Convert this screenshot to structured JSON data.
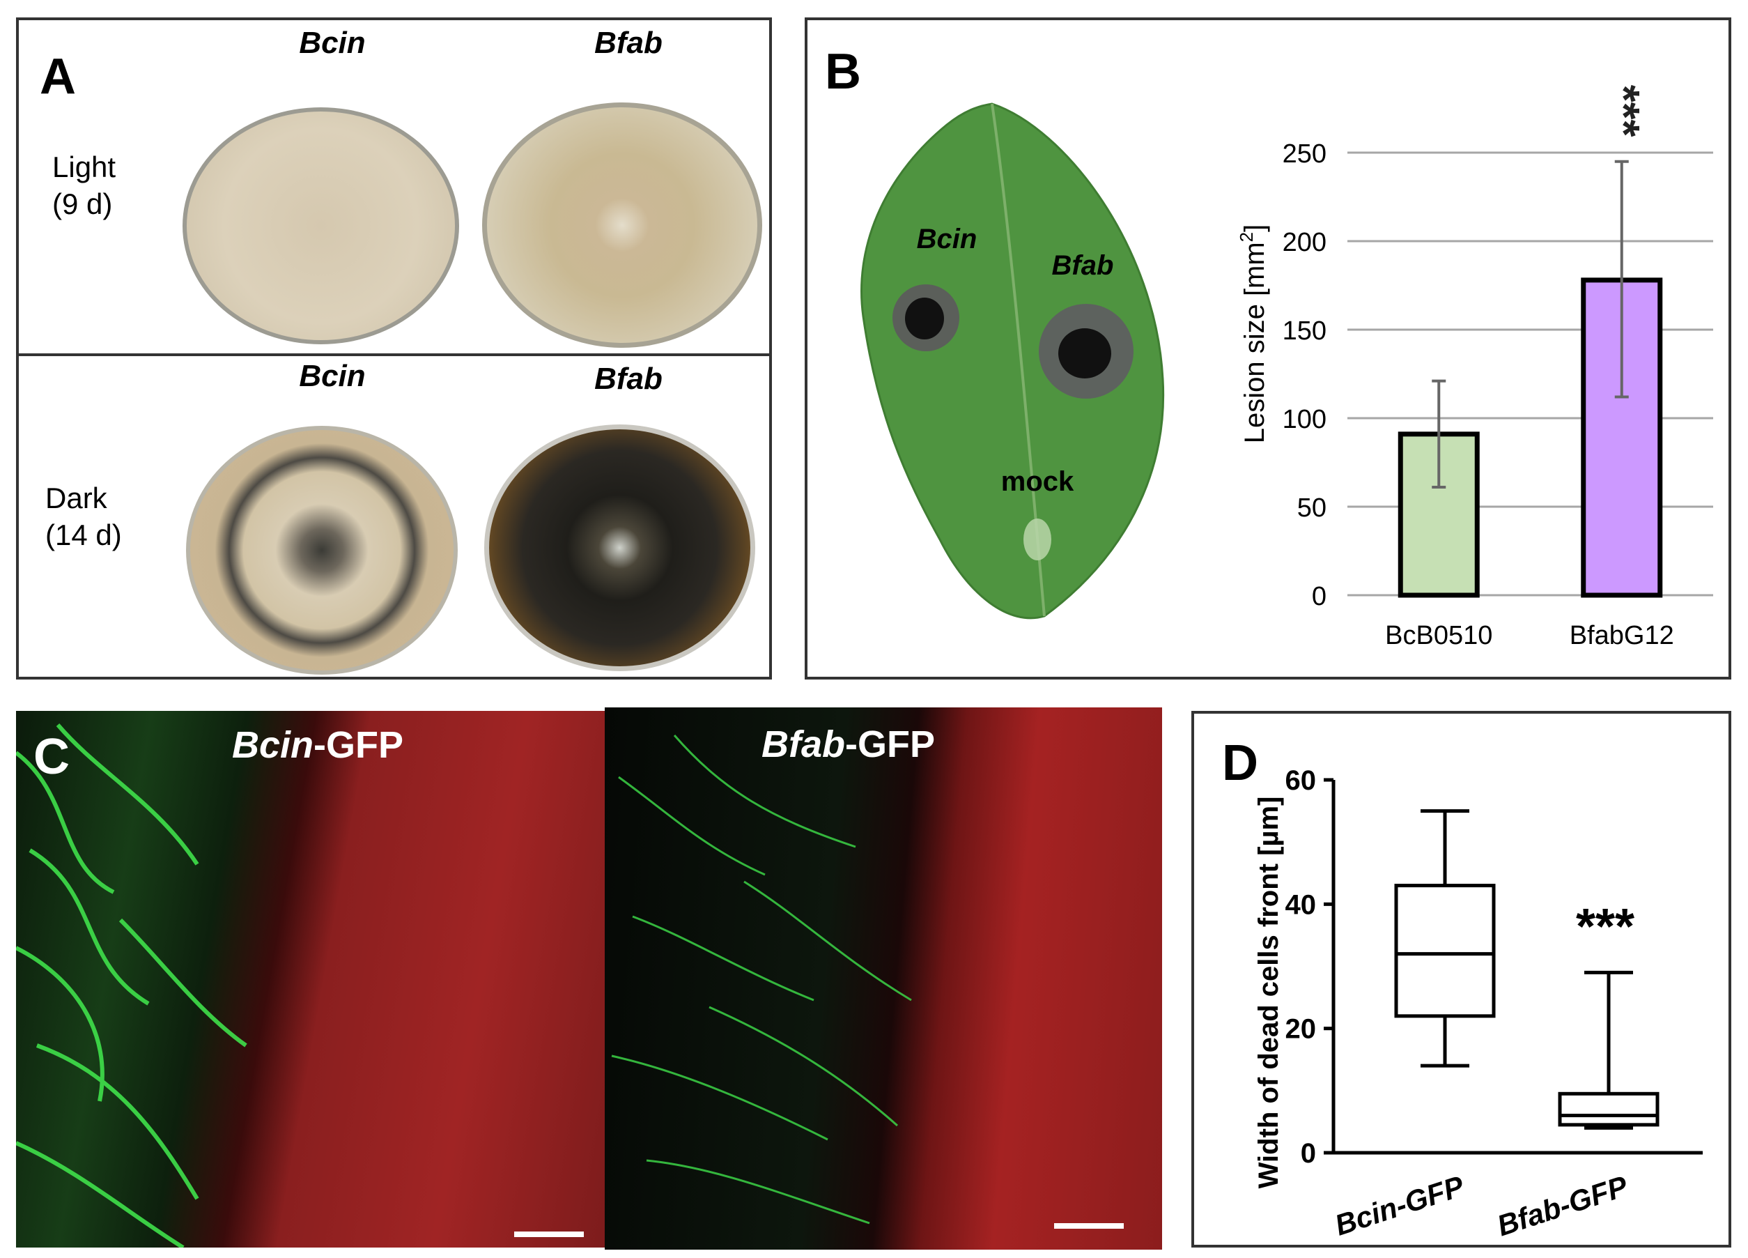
{
  "panel_a": {
    "label": "A",
    "col_left": "Bcin",
    "col_right": "Bfab",
    "rows": [
      {
        "condition_line1": "Light",
        "condition_line2": "(9 d)"
      },
      {
        "condition_line1": "Dark",
        "condition_line2": "(14 d)"
      }
    ]
  },
  "panel_b": {
    "label": "B",
    "leaf_labels": {
      "bcin": "Bcin",
      "bfab": "Bfab",
      "mock": "mock"
    },
    "significance": "***"
  },
  "panel_c": {
    "label": "C",
    "left_title_italic": "Bcin",
    "right_title_italic": "Bfab",
    "title_suffix": "-GFP"
  },
  "panel_d": {
    "label": "D",
    "significance": "***"
  },
  "chart_data": [
    {
      "type": "bar",
      "panel": "B",
      "categories": [
        "BcB0510",
        "BfabG12"
      ],
      "values": [
        91,
        178
      ],
      "error_low": [
        61,
        112
      ],
      "error_high": [
        121,
        245
      ],
      "colors": [
        "#c6e0b4",
        "#cc99ff"
      ],
      "ylabel": "Lesion size [mm",
      "ylabel_sup": "2",
      "ylabel_end": "]",
      "ylim": [
        0,
        250
      ],
      "yticks": [
        0,
        50,
        100,
        150,
        200,
        250
      ],
      "grid": true
    },
    {
      "type": "box",
      "panel": "D",
      "categories": [
        "Bcin-GFP",
        "Bfab-GFP"
      ],
      "boxes": [
        {
          "whisker_low": 14,
          "q1": 22,
          "median": 32,
          "q3": 43,
          "whisker_high": 55
        },
        {
          "whisker_low": 4,
          "q1": 4.5,
          "median": 6,
          "q3": 9.5,
          "whisker_high": 29
        }
      ],
      "ylabel": "Width of dead cells front [µm]",
      "ylim": [
        0,
        60
      ],
      "yticks": [
        0,
        20,
        40,
        60
      ]
    }
  ]
}
